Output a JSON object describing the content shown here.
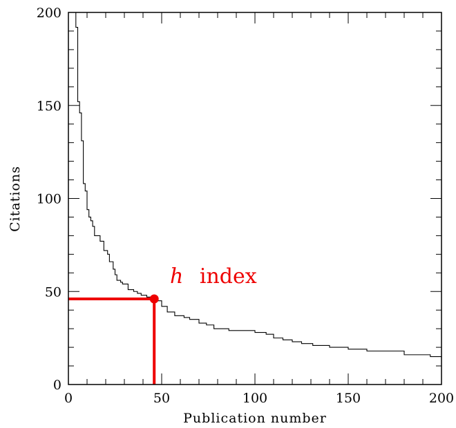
{
  "chart_data": {
    "type": "line",
    "title": "",
    "xlabel": "Publication number",
    "ylabel": "Citations",
    "xlim": [
      0,
      200
    ],
    "ylim": [
      0,
      200
    ],
    "xticks": [
      0,
      50,
      100,
      150,
      200
    ],
    "yticks": [
      0,
      50,
      100,
      150,
      200
    ],
    "grid": false,
    "series": [
      {
        "step": "post",
        "color": "#000000",
        "x": [
          4,
          5,
          6,
          7,
          8,
          9,
          10,
          11,
          12,
          13,
          14,
          15,
          17,
          19,
          21,
          22,
          24,
          25,
          26,
          28,
          29,
          32,
          35,
          37,
          39,
          42,
          44,
          46,
          47,
          50,
          53,
          57,
          62,
          65,
          70,
          74,
          78,
          86,
          100,
          106,
          110,
          115,
          120,
          125,
          131,
          140,
          150,
          160,
          180,
          194,
          200
        ],
        "y": [
          192,
          152,
          146,
          131,
          108,
          104,
          94,
          90,
          88,
          85,
          80,
          80,
          77,
          72,
          70,
          66,
          62,
          59,
          56,
          55,
          54,
          51,
          50,
          49,
          48,
          47,
          46,
          46,
          45,
          42,
          39,
          37,
          36,
          35,
          33,
          32,
          30,
          29,
          28,
          27,
          25,
          24,
          23,
          22,
          21,
          20,
          19,
          18,
          16,
          15,
          14
        ]
      }
    ],
    "annotations": [
      {
        "text_italic": "h",
        "text": "index",
        "color": "#ee0000"
      }
    ],
    "h_index": {
      "x": 46,
      "y": 46,
      "color": "#ee0000"
    }
  }
}
